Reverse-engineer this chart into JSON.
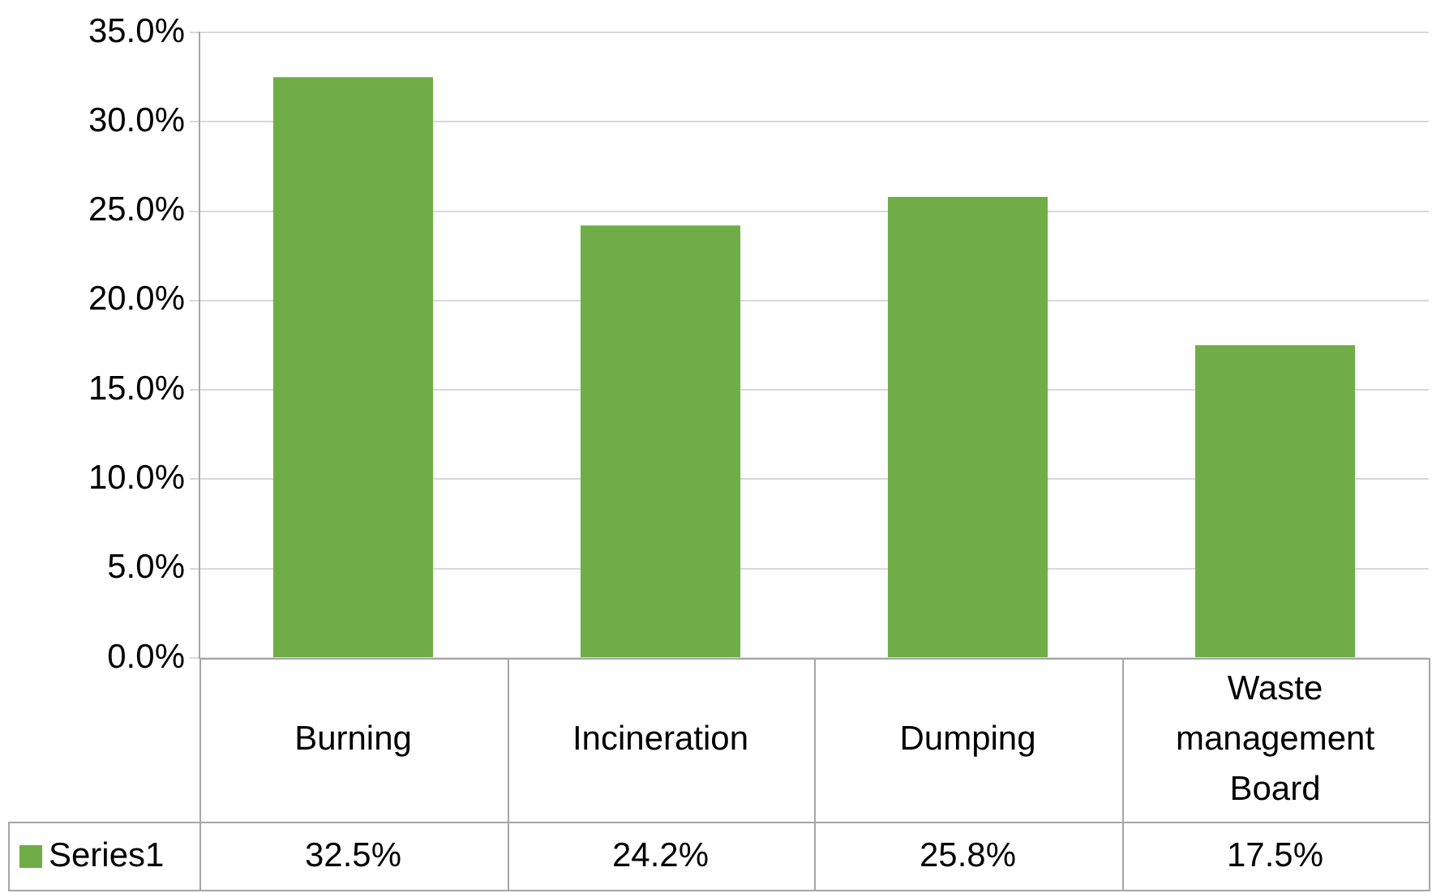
{
  "chart_data": {
    "type": "bar",
    "categories": [
      "Burning",
      "Incineration",
      "Dumping",
      "Waste management Board"
    ],
    "series": [
      {
        "name": "Series1",
        "color": "#70ad47",
        "values": [
          32.5,
          24.2,
          25.8,
          17.5
        ],
        "value_labels": [
          "32.5%",
          "24.2%",
          "25.8%",
          "17.5%"
        ]
      }
    ],
    "ylim": [
      0,
      35
    ],
    "yticks": [
      {
        "value": 0,
        "label": "0.0%"
      },
      {
        "value": 5,
        "label": "5.0%"
      },
      {
        "value": 10,
        "label": "10.0%"
      },
      {
        "value": 15,
        "label": "15.0%"
      },
      {
        "value": 20,
        "label": "20.0%"
      },
      {
        "value": 25,
        "label": "25.0%"
      },
      {
        "value": 30,
        "label": "30.0%"
      },
      {
        "value": 35,
        "label": "35.0%"
      }
    ],
    "grid": "y",
    "legend": "bottom"
  }
}
